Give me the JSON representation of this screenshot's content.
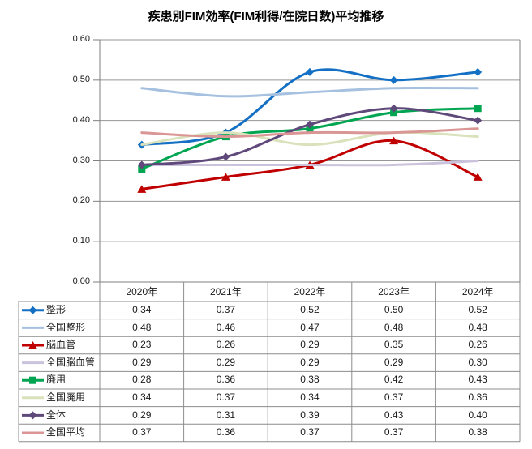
{
  "chart_data": {
    "type": "line",
    "title": "疾患別FIM効率(FIM利得/在院日数)平均推移",
    "categories": [
      "2020年",
      "2021年",
      "2022年",
      "2023年",
      "2024年"
    ],
    "series": [
      {
        "name": "整形",
        "color": "#1470C4",
        "marker": "diamond",
        "values": [
          0.34,
          0.37,
          0.52,
          0.5,
          0.52
        ]
      },
      {
        "name": "全国整形",
        "color": "#A6C1E0",
        "marker": "none",
        "values": [
          0.48,
          0.46,
          0.47,
          0.48,
          0.48
        ]
      },
      {
        "name": "脳血管",
        "color": "#C00000",
        "marker": "triangle",
        "values": [
          0.23,
          0.26,
          0.29,
          0.35,
          0.26
        ]
      },
      {
        "name": "全国脳血管",
        "color": "#CBC2DB",
        "marker": "none",
        "values": [
          0.29,
          0.29,
          0.29,
          0.29,
          0.3
        ]
      },
      {
        "name": "廃用",
        "color": "#00A551",
        "marker": "square",
        "values": [
          0.28,
          0.36,
          0.38,
          0.42,
          0.43
        ]
      },
      {
        "name": "全国廃用",
        "color": "#D9E2BA",
        "marker": "none",
        "values": [
          0.34,
          0.37,
          0.34,
          0.37,
          0.36
        ]
      },
      {
        "name": "全体",
        "color": "#5F497A",
        "marker": "diamond",
        "values": [
          0.29,
          0.31,
          0.39,
          0.43,
          0.4
        ]
      },
      {
        "name": "全国平均",
        "color": "#D99694",
        "marker": "none",
        "values": [
          0.37,
          0.36,
          0.37,
          0.37,
          0.38
        ]
      }
    ],
    "y_ticks": [
      "0.00",
      "0.10",
      "0.20",
      "0.30",
      "0.40",
      "0.50",
      "0.60"
    ],
    "ylim": [
      0,
      0.6
    ],
    "y_major_unit": 0.1,
    "value_format": "0.00",
    "grid": true,
    "smoothed_lines": true,
    "legend_position": "left-of-data-table"
  },
  "colors": {
    "gridline": "#969696",
    "axis": "#7F7F7F",
    "table_border": "#8C8C8C",
    "text": "#1A1A1A",
    "background": "#FFFFFF",
    "frame_border": "#898989"
  }
}
